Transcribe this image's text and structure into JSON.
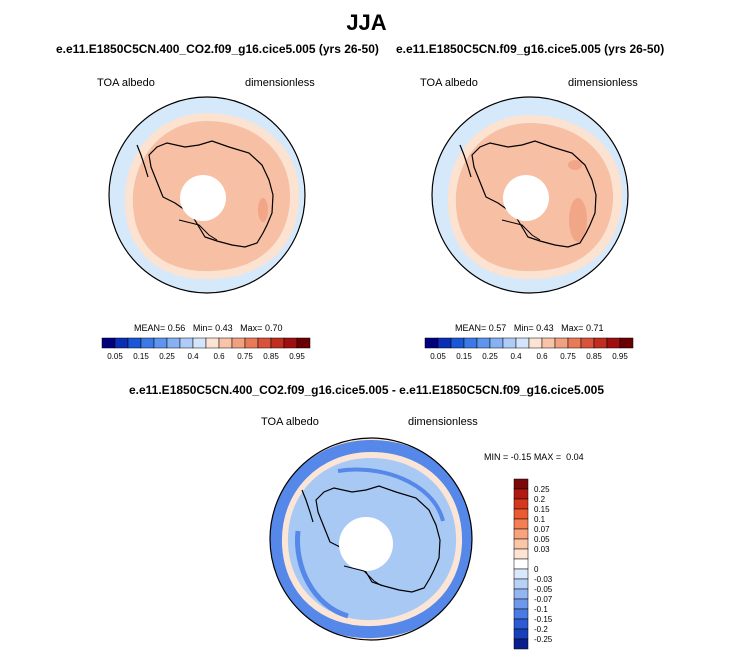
{
  "main_title": "JJA",
  "colors": {
    "ocean": "#d6e9fb",
    "continent": "#ffffff",
    "ice": "#f7bfa3",
    "ice_edge": "#fbe2d1",
    "ice_high": "#f2a688",
    "diff_neg": "#5588e8",
    "diff_neg_light": "#a9c9f5",
    "diff_pos_light": "#fbe5d6"
  },
  "panels": [
    {
      "title": "e.e11.E1850C5CN.400_CO2.f09_g16.cice5.005 (yrs 26-50)",
      "variable": "TOA albedo",
      "units": "dimensionless",
      "stats": {
        "mean_label": "MEAN=",
        "mean": "0.56",
        "min_label": "Min=",
        "min": "0.43",
        "max_label": "Max=",
        "max": "0.70"
      }
    },
    {
      "title": "e.e11.E1850C5CN.f09_g16.cice5.005 (yrs 26-50)",
      "variable": "TOA albedo",
      "units": "dimensionless",
      "stats": {
        "mean_label": "MEAN=",
        "mean": "0.57",
        "min_label": "Min=",
        "min": "0.43",
        "max_label": "Max=",
        "max": "0.71"
      }
    }
  ],
  "diff_panel": {
    "title": "e.e11.E1850C5CN.400_CO2.f09_g16.cice5.005 - e.e11.E1850C5CN.f09_g16.cice5.005",
    "variable": "TOA albedo",
    "units": "dimensionless",
    "stats": {
      "min_label": "MIN =",
      "min": "-0.15",
      "max_label": "MAX =",
      "max": "0.04"
    }
  },
  "chart_data": [
    {
      "type": "heatmap",
      "projection": "south-polar-stereographic",
      "title": "e.e11.E1850C5CN.400_CO2.f09_g16.cice5.005 (yrs 26-50)",
      "variable": "TOA albedo",
      "units": "dimensionless",
      "mean": 0.56,
      "min": 0.43,
      "max": 0.7,
      "colorbar": {
        "orientation": "horizontal",
        "colors": [
          "#00007f",
          "#0a2fb4",
          "#1a57d6",
          "#3c78e6",
          "#5f95ee",
          "#86b1f3",
          "#aeccf7",
          "#d4e5fb",
          "#fde3d4",
          "#f8c3a9",
          "#f1a080",
          "#e87a58",
          "#d9533a",
          "#c12d1f",
          "#a00f0f",
          "#6b0000"
        ],
        "tick_labels": [
          "0.05",
          "0.15",
          "0.25",
          "0.4",
          "0.6",
          "0.75",
          "0.85",
          "0.95"
        ]
      }
    },
    {
      "type": "heatmap",
      "projection": "south-polar-stereographic",
      "title": "e.e11.E1850C5CN.f09_g16.cice5.005 (yrs 26-50)",
      "variable": "TOA albedo",
      "units": "dimensionless",
      "mean": 0.57,
      "min": 0.43,
      "max": 0.71,
      "colorbar": {
        "orientation": "horizontal",
        "colors": [
          "#00007f",
          "#0a2fb4",
          "#1a57d6",
          "#3c78e6",
          "#5f95ee",
          "#86b1f3",
          "#aeccf7",
          "#d4e5fb",
          "#fde3d4",
          "#f8c3a9",
          "#f1a080",
          "#e87a58",
          "#d9533a",
          "#c12d1f",
          "#a00f0f",
          "#6b0000"
        ],
        "tick_labels": [
          "0.05",
          "0.15",
          "0.25",
          "0.4",
          "0.6",
          "0.75",
          "0.85",
          "0.95"
        ]
      }
    },
    {
      "type": "heatmap",
      "projection": "south-polar-stereographic",
      "title": "e.e11.E1850C5CN.400_CO2.f09_g16.cice5.005 - e.e11.E1850C5CN.f09_g16.cice5.005",
      "variable": "TOA albedo",
      "units": "dimensionless",
      "min": -0.15,
      "max": 0.04,
      "colorbar": {
        "orientation": "vertical",
        "colors_top_to_bottom": [
          "#7a0a0a",
          "#b01a12",
          "#d6381f",
          "#ea5a33",
          "#f47f54",
          "#f8a37e",
          "#fbc6a8",
          "#fde3d2",
          "#ffffff",
          "#d9e8fb",
          "#b8d2f7",
          "#93b6f2",
          "#6d98ec",
          "#4a7be3",
          "#2c5cd3",
          "#1840b8",
          "#0a1f8e"
        ],
        "tick_labels_top_to_bottom": [
          "0.25",
          "0.2",
          "0.15",
          "0.1",
          "0.07",
          "0.05",
          "0.03",
          "0",
          "-0.03",
          "-0.05",
          "-0.07",
          "-0.1",
          "-0.15",
          "-0.2",
          "-0.25"
        ]
      }
    }
  ]
}
